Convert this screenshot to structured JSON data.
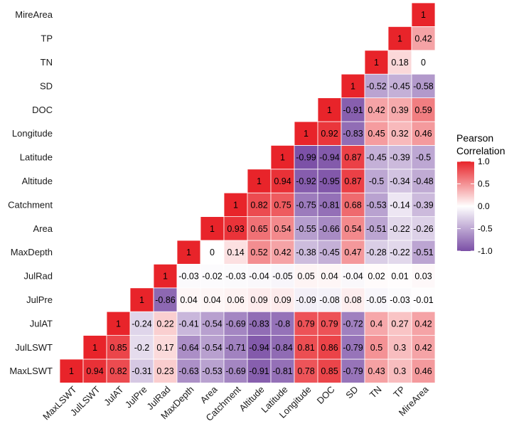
{
  "chart_data": {
    "type": "heatmap",
    "variables": [
      "MaxLSWT",
      "JulLSWT",
      "JulAT",
      "JulPre",
      "JulRad",
      "MaxDepth",
      "Area",
      "Catchment",
      "Altitude",
      "Latitude",
      "Longitude",
      "DOC",
      "SD",
      "TN",
      "TP",
      "MireArea"
    ],
    "x_tick_labels": [
      "MaxLSWT",
      "JulLSWT",
      "JulAT",
      "JulPre",
      "JulRad",
      "MaxDepth",
      "Area",
      "Catchment",
      "Altitude",
      "Latitude",
      "Longitude",
      "DOC",
      "SD",
      "TN",
      "TP",
      "MireArea"
    ],
    "y_tick_labels": [
      "MireArea",
      "TP",
      "TN",
      "SD",
      "DOC",
      "Longitude",
      "Latitude",
      "Altitude",
      "Catchment",
      "Area",
      "MaxDepth",
      "JulRad",
      "JulPre",
      "JulAT",
      "JulLSWT",
      "MaxLSWT"
    ],
    "rows": [
      {
        "variable": "MaxLSWT",
        "values": [
          1,
          0.94,
          0.82,
          -0.31,
          0.23,
          -0.63,
          -0.53,
          -0.69,
          -0.91,
          -0.81,
          0.78,
          0.85,
          -0.79,
          0.43,
          0.3,
          0.46
        ],
        "labels": [
          "1",
          "0.94",
          "0.82",
          "-0.31",
          "0.23",
          "-0.63",
          "-0.53",
          "-0.69",
          "-0.91",
          "-0.81",
          "0.78",
          "0.85",
          "-0.79",
          "0.43",
          "0.3",
          "0.46"
        ]
      },
      {
        "variable": "JulLSWT",
        "values": [
          1,
          0.85,
          -0.2,
          0.17,
          -0.64,
          -0.54,
          -0.71,
          -0.94,
          -0.84,
          0.81,
          0.86,
          -0.79,
          0.5,
          0.3,
          0.42
        ],
        "labels": [
          "1",
          "0.85",
          "-0.2",
          "0.17",
          "-0.64",
          "-0.54",
          "-0.71",
          "-0.94",
          "-0.84",
          "0.81",
          "0.86",
          "-0.79",
          "0.5",
          "0.3",
          "0.42"
        ]
      },
      {
        "variable": "JulAT",
        "values": [
          1,
          -0.24,
          0.22,
          -0.41,
          -0.54,
          -0.69,
          -0.83,
          -0.8,
          0.79,
          0.79,
          -0.72,
          0.4,
          0.27,
          0.42
        ],
        "labels": [
          "1",
          "-0.24",
          "0.22",
          "-0.41",
          "-0.54",
          "-0.69",
          "-0.83",
          "-0.8",
          "0.79",
          "0.79",
          "-0.72",
          "0.4",
          "0.27",
          "0.42"
        ]
      },
      {
        "variable": "JulPre",
        "values": [
          1,
          -0.86,
          0.04,
          0.04,
          0.06,
          0.09,
          0.09,
          -0.09,
          -0.08,
          0.08,
          -0.05,
          -0.03,
          -0.01
        ],
        "labels": [
          "1",
          "-0.86",
          "0.04",
          "0.04",
          "0.06",
          "0.09",
          "0.09",
          "-0.09",
          "-0.08",
          "0.08",
          "-0.05",
          "-0.03",
          "-0.01"
        ]
      },
      {
        "variable": "JulRad",
        "values": [
          1,
          -0.03,
          -0.02,
          -0.03,
          -0.04,
          -0.05,
          0.05,
          0.04,
          -0.04,
          0.02,
          0.01,
          0.03
        ],
        "labels": [
          "1",
          "-0.03",
          "-0.02",
          "-0.03",
          "-0.04",
          "-0.05",
          "0.05",
          "0.04",
          "-0.04",
          "0.02",
          "0.01",
          "0.03"
        ]
      },
      {
        "variable": "MaxDepth",
        "values": [
          1,
          0,
          0.14,
          0.52,
          0.42,
          -0.38,
          -0.45,
          0.47,
          -0.28,
          -0.22,
          -0.51
        ],
        "labels": [
          "1",
          "0",
          "0.14",
          "0.52",
          "0.42",
          "-0.38",
          "-0.45",
          "0.47",
          "-0.28",
          "-0.22",
          "-0.51"
        ]
      },
      {
        "variable": "Area",
        "values": [
          1,
          0.93,
          0.65,
          0.54,
          -0.55,
          -0.66,
          0.54,
          -0.51,
          -0.22,
          -0.26
        ],
        "labels": [
          "1",
          "0.93",
          "0.65",
          "0.54",
          "-0.55",
          "-0.66",
          "0.54",
          "-0.51",
          "-0.22",
          "-0.26"
        ]
      },
      {
        "variable": "Catchment",
        "values": [
          1,
          0.82,
          0.75,
          -0.75,
          -0.81,
          0.68,
          -0.53,
          -0.14,
          -0.39
        ],
        "labels": [
          "1",
          "0.82",
          "0.75",
          "-0.75",
          "-0.81",
          "0.68",
          "-0.53",
          "-0.14",
          "-0.39"
        ]
      },
      {
        "variable": "Altitude",
        "values": [
          1,
          0.94,
          -0.92,
          -0.95,
          0.87,
          -0.5,
          -0.34,
          -0.48
        ],
        "labels": [
          "1",
          "0.94",
          "-0.92",
          "-0.95",
          "0.87",
          "-0.5",
          "-0.34",
          "-0.48"
        ]
      },
      {
        "variable": "Latitude",
        "values": [
          1,
          -0.99,
          -0.94,
          0.87,
          -0.45,
          -0.39,
          -0.5
        ],
        "labels": [
          "1",
          "-0.99",
          "-0.94",
          "0.87",
          "-0.45",
          "-0.39",
          "-0.5"
        ]
      },
      {
        "variable": "Longitude",
        "values": [
          1,
          0.92,
          -0.83,
          0.45,
          0.32,
          0.46
        ],
        "labels": [
          "1",
          "0.92",
          "-0.83",
          "0.45",
          "0.32",
          "0.46"
        ]
      },
      {
        "variable": "DOC",
        "values": [
          1,
          -0.91,
          0.42,
          0.39,
          0.59
        ],
        "labels": [
          "1",
          "-0.91",
          "0.42",
          "0.39",
          "0.59"
        ]
      },
      {
        "variable": "SD",
        "values": [
          1,
          -0.52,
          -0.45,
          -0.58
        ],
        "labels": [
          "1",
          "-0.52",
          "-0.45",
          "-0.58"
        ]
      },
      {
        "variable": "TN",
        "values": [
          1,
          0.18,
          0
        ],
        "labels": [
          "1",
          "0.18",
          "0"
        ]
      },
      {
        "variable": "TP",
        "values": [
          1,
          0.42
        ],
        "labels": [
          "1",
          "0.42"
        ]
      },
      {
        "variable": "MireArea",
        "values": [
          1
        ],
        "labels": [
          "1"
        ]
      }
    ],
    "color_scale": {
      "low": "#7b4fa6",
      "mid": "#ffffff",
      "high": "#e8242a",
      "range": [
        -1,
        1
      ]
    },
    "legend": {
      "title_line1": "Pearson",
      "title_line2": "Correlation",
      "position": "right",
      "ticks": [
        {
          "value": 1,
          "label": "1.0"
        },
        {
          "value": 0.5,
          "label": "0.5"
        },
        {
          "value": 0,
          "label": "0.0"
        },
        {
          "value": -0.5,
          "label": "-0.5"
        },
        {
          "value": -1,
          "label": "-1.0"
        }
      ]
    }
  }
}
